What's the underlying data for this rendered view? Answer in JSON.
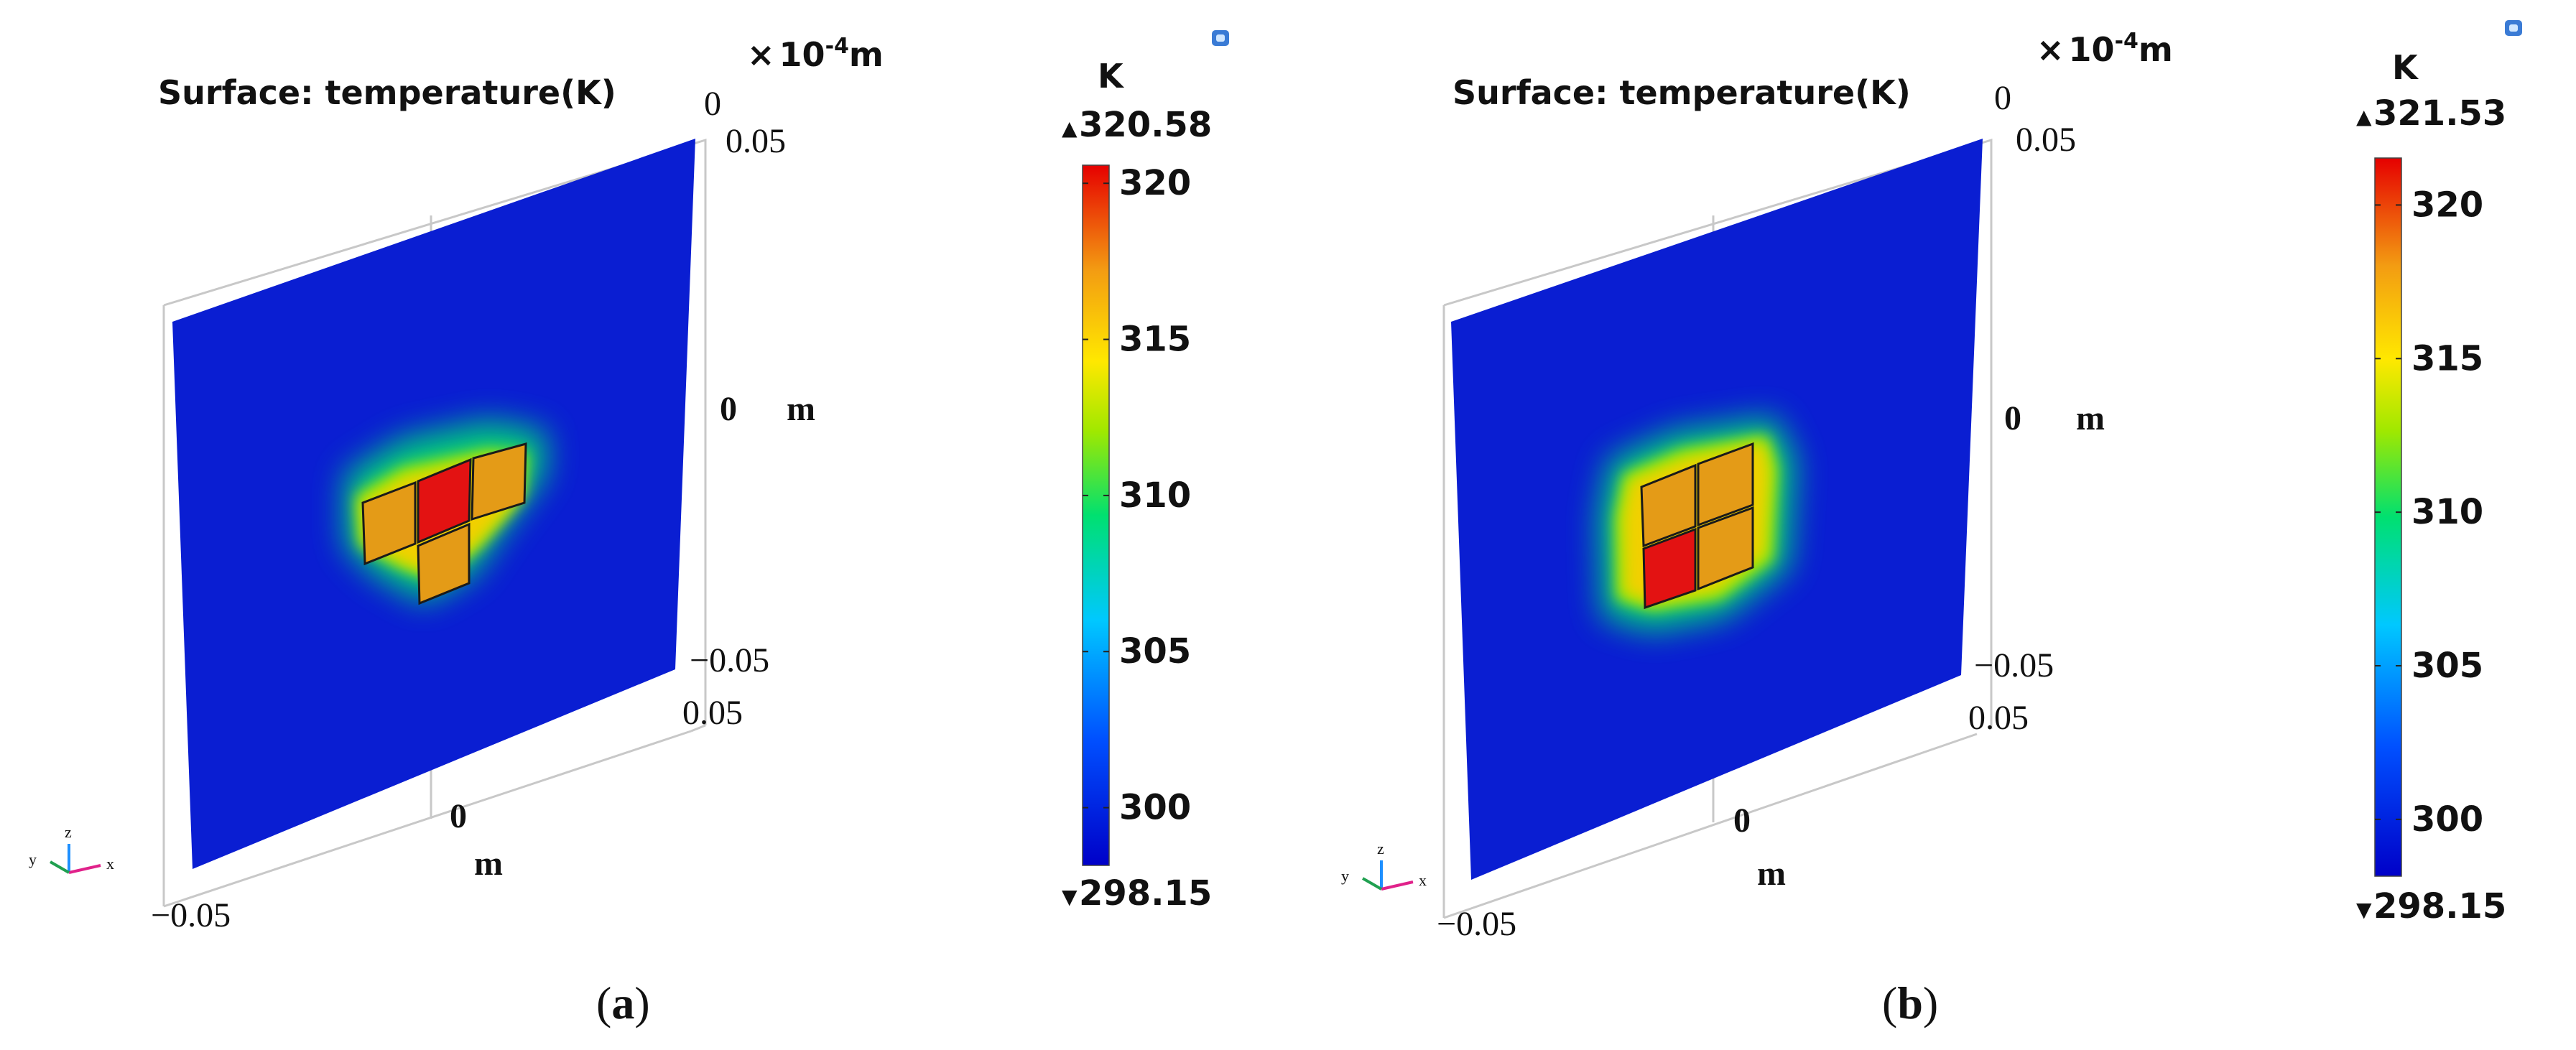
{
  "panels": [
    {
      "id": "a",
      "caption_letter": "a",
      "title": "Surface: temperature(K)",
      "scale_prefix": "×",
      "scale_base": "10",
      "scale_exp": "-4",
      "scale_unit": "m",
      "axis_top_zero": "0",
      "axis_y_top": "0.05",
      "axis_y_mid": "0",
      "axis_y_unit": "m",
      "axis_y_bottom": "−0.05",
      "axis_x_right": "0.05",
      "axis_x_mid": "0",
      "axis_x_unit": "m",
      "axis_x_left": "−0.05",
      "triad": {
        "x": "x",
        "y": "y",
        "z": "z"
      },
      "colorbar": {
        "unit": "K",
        "max_label": "320.58",
        "min_label": "298.15",
        "max": 320.58,
        "min": 298.15,
        "ticks": [
          {
            "value": 320,
            "label": "320"
          },
          {
            "value": 315,
            "label": "315"
          },
          {
            "value": 310,
            "label": "310"
          },
          {
            "value": 305,
            "label": "305"
          },
          {
            "value": 300,
            "label": "300"
          }
        ]
      },
      "heat_sources": [
        {
          "name": "left",
          "temperature_level": "orange"
        },
        {
          "name": "center",
          "temperature_level": "red (max)"
        },
        {
          "name": "right",
          "temperature_level": "orange"
        },
        {
          "name": "bottom",
          "temperature_level": "orange"
        }
      ]
    },
    {
      "id": "b",
      "caption_letter": "b",
      "title": "Surface: temperature(K)",
      "scale_prefix": "×",
      "scale_base": "10",
      "scale_exp": "-4",
      "scale_unit": "m",
      "axis_top_zero": "0",
      "axis_y_top": "0.05",
      "axis_y_mid": "0",
      "axis_y_unit": "m",
      "axis_y_bottom": "−0.05",
      "axis_x_right": "0.05",
      "axis_x_mid": "0",
      "axis_x_unit": "m",
      "axis_x_left": "−0.05",
      "triad": {
        "x": "x",
        "y": "y",
        "z": "z"
      },
      "colorbar": {
        "unit": "K",
        "max_label": "321.53",
        "min_label": "298.15",
        "max": 321.53,
        "min": 298.15,
        "ticks": [
          {
            "value": 320,
            "label": "320"
          },
          {
            "value": 315,
            "label": "315"
          },
          {
            "value": 310,
            "label": "310"
          },
          {
            "value": 305,
            "label": "305"
          },
          {
            "value": 300,
            "label": "300"
          }
        ]
      },
      "heat_sources": [
        {
          "name": "top-left",
          "temperature_level": "orange"
        },
        {
          "name": "top-right",
          "temperature_level": "orange"
        },
        {
          "name": "bottom-left",
          "temperature_level": "red (max)"
        },
        {
          "name": "bottom-right",
          "temperature_level": "orange"
        }
      ]
    }
  ],
  "colors": {
    "plane_blue": "#0a1ed2",
    "hot_red": "#e31212",
    "warm_orange": "#e49b17",
    "frame_gray": "#c8c8c8"
  }
}
